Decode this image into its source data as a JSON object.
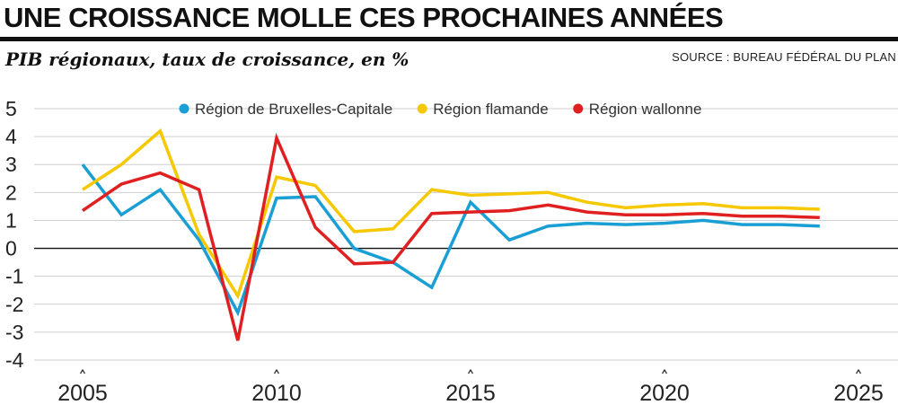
{
  "header": {
    "title": "UNE CROISSANCE MOLLE CES PROCHAINES ANNÉES",
    "subtitle": "PIB régionaux, taux de croissance, en %",
    "source": "SOURCE : BUREAU FÉDÉRAL DU PLAN"
  },
  "chart_data": {
    "type": "line",
    "title": "UNE CROISSANCE MOLLE CES PROCHAINES ANNÉES",
    "subtitle": "PIB régionaux, taux de croissance, en %",
    "xlabel": "",
    "ylabel": "",
    "xlim": [
      2005,
      2025
    ],
    "ylim": [
      -4,
      5
    ],
    "x_ticks": [
      2005,
      2010,
      2015,
      2020,
      2025
    ],
    "y_ticks": [
      5,
      4,
      3,
      2,
      1,
      0,
      -1,
      -2,
      -3,
      -4
    ],
    "grid": true,
    "legend_position": "top",
    "x": [
      2005,
      2006,
      2007,
      2008,
      2009,
      2010,
      2011,
      2012,
      2013,
      2014,
      2015,
      2016,
      2017,
      2018,
      2019,
      2020,
      2021,
      2022,
      2023,
      2024
    ],
    "series": [
      {
        "name": "Région de Bruxelles-Capitale",
        "color": "#1a9fd4",
        "values": [
          3.0,
          1.2,
          2.1,
          0.3,
          -2.3,
          1.8,
          1.85,
          0.0,
          -0.5,
          -1.4,
          1.65,
          0.3,
          0.8,
          0.9,
          0.85,
          0.9,
          1.0,
          0.85,
          0.85,
          0.8
        ]
      },
      {
        "name": "Région flamande",
        "color": "#f5c800",
        "values": [
          2.1,
          3.0,
          4.2,
          0.5,
          -1.7,
          2.55,
          2.25,
          0.6,
          0.7,
          2.1,
          1.9,
          1.95,
          2.0,
          1.65,
          1.45,
          1.55,
          1.6,
          1.45,
          1.45,
          1.4
        ]
      },
      {
        "name": "Région wallonne",
        "color": "#e02020",
        "values": [
          1.35,
          2.3,
          2.7,
          2.1,
          -3.3,
          3.95,
          0.75,
          -0.55,
          -0.5,
          1.25,
          1.3,
          1.35,
          1.55,
          1.3,
          1.2,
          1.2,
          1.25,
          1.15,
          1.15,
          1.1
        ]
      }
    ]
  }
}
